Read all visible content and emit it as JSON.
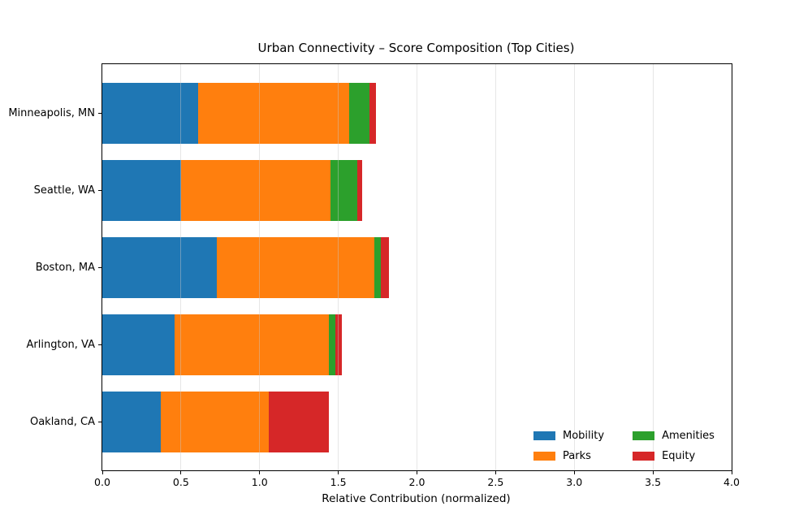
{
  "chart_data": {
    "type": "bar",
    "orientation": "horizontal",
    "stacked": true,
    "title": "Urban Connectivity – Score Composition (Top Cities)",
    "xlabel": "Relative Contribution (normalized)",
    "ylabel": "",
    "categories": [
      "Minneapolis, MN",
      "Seattle, WA",
      "Boston, MA",
      "Arlington, VA",
      "Oakland, CA"
    ],
    "series": [
      {
        "name": "Mobility",
        "color": "#1f77b4",
        "values": [
          0.61,
          0.5,
          0.73,
          0.46,
          0.37
        ]
      },
      {
        "name": "Parks",
        "color": "#ff7f0e",
        "values": [
          0.96,
          0.95,
          1.0,
          0.98,
          0.69
        ]
      },
      {
        "name": "Amenities",
        "color": "#2ca02c",
        "values": [
          0.13,
          0.17,
          0.04,
          0.04,
          0.0
        ]
      },
      {
        "name": "Equity",
        "color": "#d62728",
        "values": [
          0.04,
          0.03,
          0.05,
          0.04,
          0.38
        ]
      }
    ],
    "xlim": [
      0.0,
      4.0
    ],
    "xticks": [
      0.0,
      0.5,
      1.0,
      1.5,
      2.0,
      2.5,
      3.0,
      3.5,
      4.0
    ],
    "grid": "vertical",
    "legend_position": "lower-right",
    "legend_columns": 2,
    "axis_color": "#000000",
    "grid_color": "#c8c8c8",
    "background": "#ffffff"
  }
}
